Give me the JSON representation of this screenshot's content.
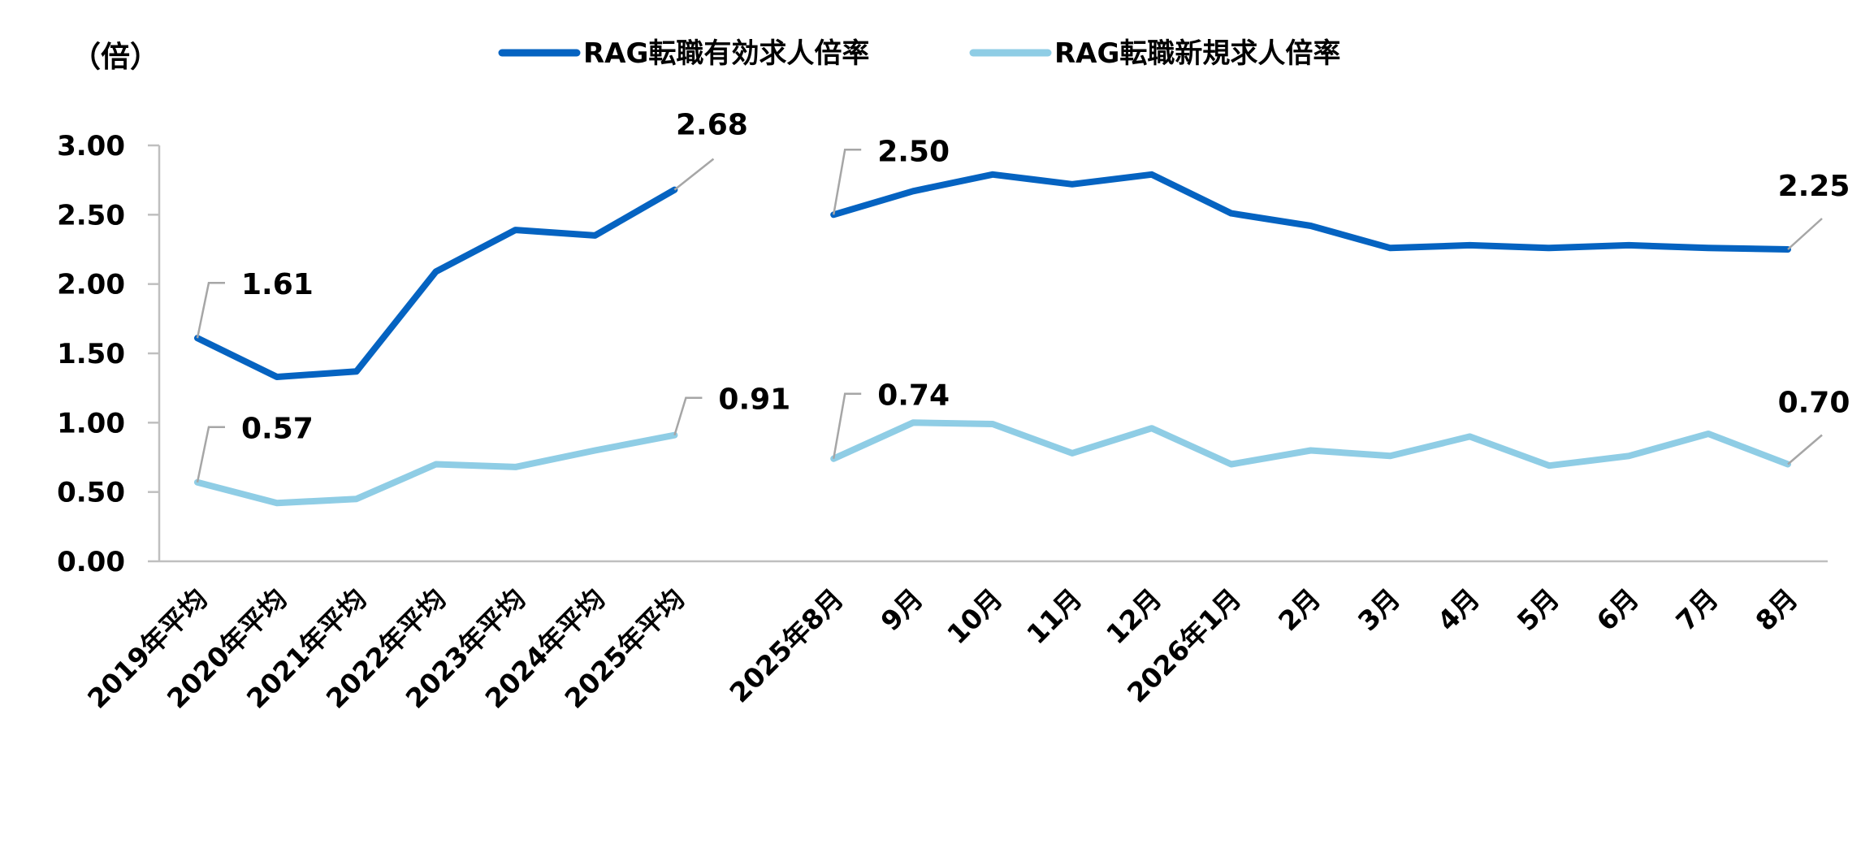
{
  "chart_data": {
    "type": "line",
    "unit_label": "（倍）",
    "ylim": [
      0,
      3.0
    ],
    "y_ticks": [
      "3.00",
      "2.50",
      "2.00",
      "1.50",
      "1.00",
      "0.50",
      "0.00"
    ],
    "y_tick_values": [
      3.0,
      2.5,
      2.0,
      1.5,
      1.0,
      0.5,
      0.0
    ],
    "grid": false,
    "legend_position": "top",
    "categories": [
      "2019年平均",
      "2020年平均",
      "2021年平均",
      "2022年平均",
      "2023年平均",
      "2024年平均",
      "2025年平均",
      "",
      "2025年8月",
      "9月",
      "10月",
      "11月",
      "12月",
      "2026年1月",
      "2月",
      "3月",
      "4月",
      "5月",
      "6月",
      "7月",
      "8月"
    ],
    "series": [
      {
        "name": "RAG転職有効求人倍率",
        "color": "#0563c1",
        "values": [
          1.61,
          1.33,
          1.37,
          2.09,
          2.39,
          2.35,
          2.68,
          null,
          2.5,
          2.67,
          2.79,
          2.72,
          2.79,
          2.51,
          2.42,
          2.26,
          2.28,
          2.26,
          2.28,
          2.26,
          2.25
        ]
      },
      {
        "name": "RAG転職新規求人倍率",
        "color": "#8fcde5",
        "values": [
          0.57,
          0.42,
          0.45,
          0.7,
          0.68,
          0.8,
          0.91,
          null,
          0.74,
          1.0,
          0.99,
          0.78,
          0.96,
          0.7,
          0.8,
          0.76,
          0.9,
          0.69,
          0.76,
          0.92,
          0.7
        ]
      }
    ],
    "data_labels": [
      {
        "series": 0,
        "index": 0,
        "text": "1.61"
      },
      {
        "series": 0,
        "index": 6,
        "text": "2.68"
      },
      {
        "series": 0,
        "index": 8,
        "text": "2.50"
      },
      {
        "series": 0,
        "index": 20,
        "text": "2.25"
      },
      {
        "series": 1,
        "index": 0,
        "text": "0.57"
      },
      {
        "series": 1,
        "index": 6,
        "text": "0.91"
      },
      {
        "series": 1,
        "index": 8,
        "text": "0.74"
      },
      {
        "series": 1,
        "index": 20,
        "text": "0.70"
      }
    ]
  }
}
